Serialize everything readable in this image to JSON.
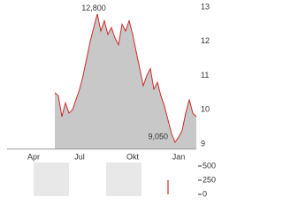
{
  "chart_data": [
    {
      "type": "area",
      "color": "#cc2a2a",
      "fill": "#c8c8c8",
      "categories": [
        null,
        null,
        null,
        null,
        null,
        null,
        null,
        "Apr",
        null,
        null,
        null,
        null,
        null,
        null,
        null,
        null,
        null,
        null,
        null,
        null,
        "Jul",
        null,
        null,
        null,
        null,
        null,
        null,
        null,
        null,
        null,
        null,
        null,
        null,
        null,
        null,
        "Okt",
        null,
        null,
        null,
        null,
        null,
        null,
        null,
        null,
        null,
        null,
        null,
        null,
        "Jan",
        null,
        null,
        null,
        null,
        null
      ],
      "values": [
        null,
        null,
        null,
        null,
        null,
        null,
        null,
        null,
        null,
        null,
        null,
        null,
        null,
        10.5,
        10.4,
        9.8,
        10.2,
        9.9,
        10.0,
        10.3,
        10.6,
        11.0,
        11.5,
        12.0,
        12.4,
        12.8,
        12.3,
        12.6,
        12.2,
        12.4,
        12.1,
        11.9,
        12.5,
        12.3,
        12.6,
        12.2,
        11.7,
        11.2,
        10.7,
        11.0,
        11.2,
        10.6,
        10.8,
        10.4,
        10.1,
        9.7,
        9.3,
        9.05,
        9.2,
        9.4,
        9.9,
        10.3,
        9.9,
        9.8
      ],
      "value_labels": [
        null,
        null,
        null,
        null,
        null,
        null,
        null,
        null,
        null,
        null,
        null,
        null,
        null,
        null,
        null,
        null,
        null,
        null,
        null,
        null,
        null,
        null,
        null,
        null,
        null,
        "12,800",
        null,
        null,
        null,
        null,
        null,
        null,
        null,
        null,
        null,
        null,
        null,
        null,
        null,
        null,
        null,
        null,
        null,
        null,
        null,
        null,
        null,
        "9,050",
        null,
        null,
        null,
        null,
        null,
        null
      ],
      "ylim": [
        8.85,
        13.05
      ],
      "yticks": [
        9,
        10,
        11,
        12,
        13
      ]
    },
    {
      "type": "bar",
      "color": "#cc2a2a",
      "values": [
        0,
        0,
        0,
        0,
        0,
        0,
        0,
        0,
        0,
        0,
        0,
        0,
        0,
        0,
        0,
        0,
        0,
        0,
        0,
        0,
        0,
        0,
        0,
        0,
        0,
        0,
        0,
        0,
        0,
        0,
        0,
        0,
        0,
        0,
        0,
        0,
        0,
        0,
        0,
        0,
        0,
        0,
        0,
        0,
        0,
        250,
        0,
        0,
        0,
        0,
        0,
        0,
        0,
        0
      ],
      "ylim": [
        0,
        500
      ],
      "yticks": [
        500,
        250,
        0
      ]
    }
  ]
}
